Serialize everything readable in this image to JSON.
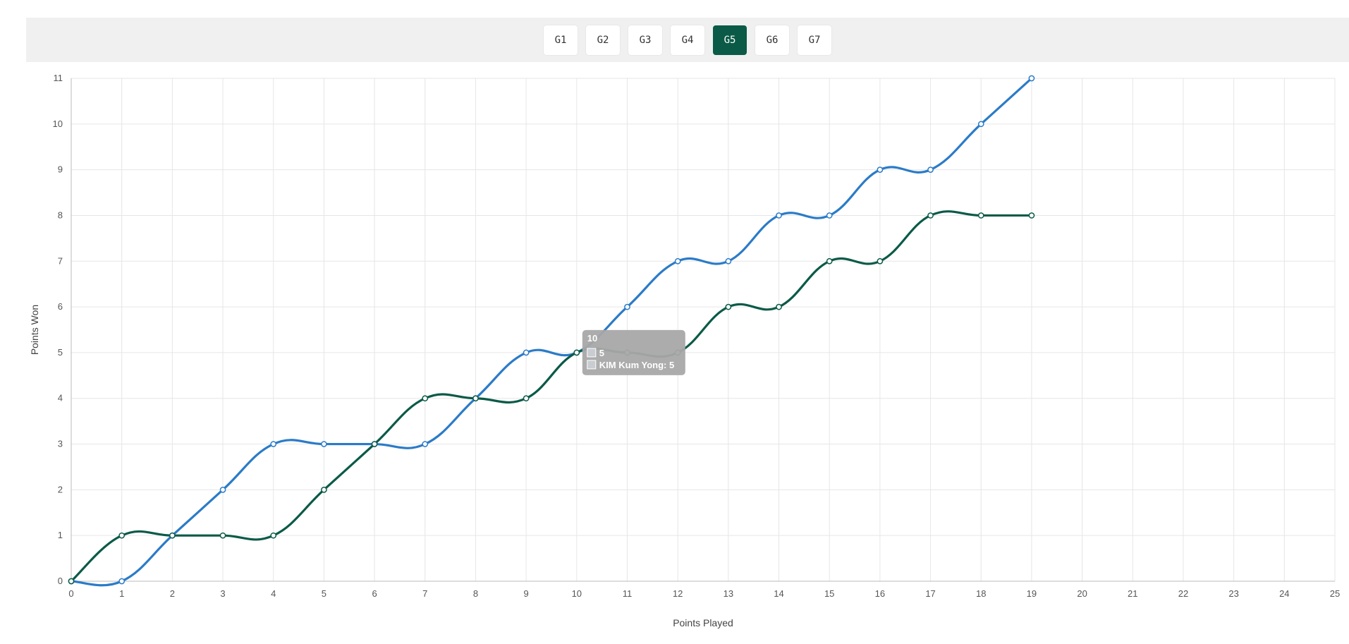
{
  "games": {
    "tabs": [
      "G1",
      "G2",
      "G3",
      "G4",
      "G5",
      "G6",
      "G7"
    ],
    "active": 4
  },
  "colors": {
    "accent": "#0a5a47",
    "series_a": "#2b7bc8",
    "series_b": "#0a5a47",
    "grid": "#e6e6e6",
    "tooltip_bg": "#a8a8a8"
  },
  "chart_data": {
    "type": "line",
    "xlabel": "Points Played",
    "ylabel": "Points Won",
    "xlim": [
      0,
      25
    ],
    "ylim": [
      0,
      11
    ],
    "grid": true,
    "curve": "smooth",
    "x_ticks": [
      0,
      1,
      2,
      3,
      4,
      5,
      6,
      7,
      8,
      9,
      10,
      11,
      12,
      13,
      14,
      15,
      16,
      17,
      18,
      19,
      20,
      21,
      22,
      23,
      24,
      25
    ],
    "y_ticks": [
      0,
      1,
      2,
      3,
      4,
      5,
      6,
      7,
      8,
      9,
      10,
      11
    ],
    "series": [
      {
        "color": "#2b7bc8",
        "x": [
          0,
          1,
          2,
          3,
          4,
          5,
          6,
          7,
          8,
          9,
          10,
          11,
          12,
          13,
          14,
          15,
          16,
          17,
          18,
          19
        ],
        "y": [
          0,
          0,
          1,
          2,
          3,
          3,
          3,
          3,
          4,
          5,
          5,
          6,
          7,
          7,
          8,
          8,
          9,
          9,
          10,
          11
        ]
      },
      {
        "name": "KIM Kum Yong",
        "color": "#0a5a47",
        "x": [
          0,
          1,
          2,
          3,
          4,
          5,
          6,
          7,
          8,
          9,
          10,
          11,
          12,
          13,
          14,
          15,
          16,
          17,
          18,
          19
        ],
        "y": [
          0,
          1,
          1,
          1,
          1,
          2,
          3,
          4,
          4,
          4,
          5,
          5,
          5,
          6,
          6,
          7,
          7,
          8,
          8,
          8
        ]
      }
    ],
    "tooltip": {
      "x": 10,
      "title": "10",
      "lines": [
        "5",
        "KIM Kum Yong: 5"
      ]
    }
  }
}
